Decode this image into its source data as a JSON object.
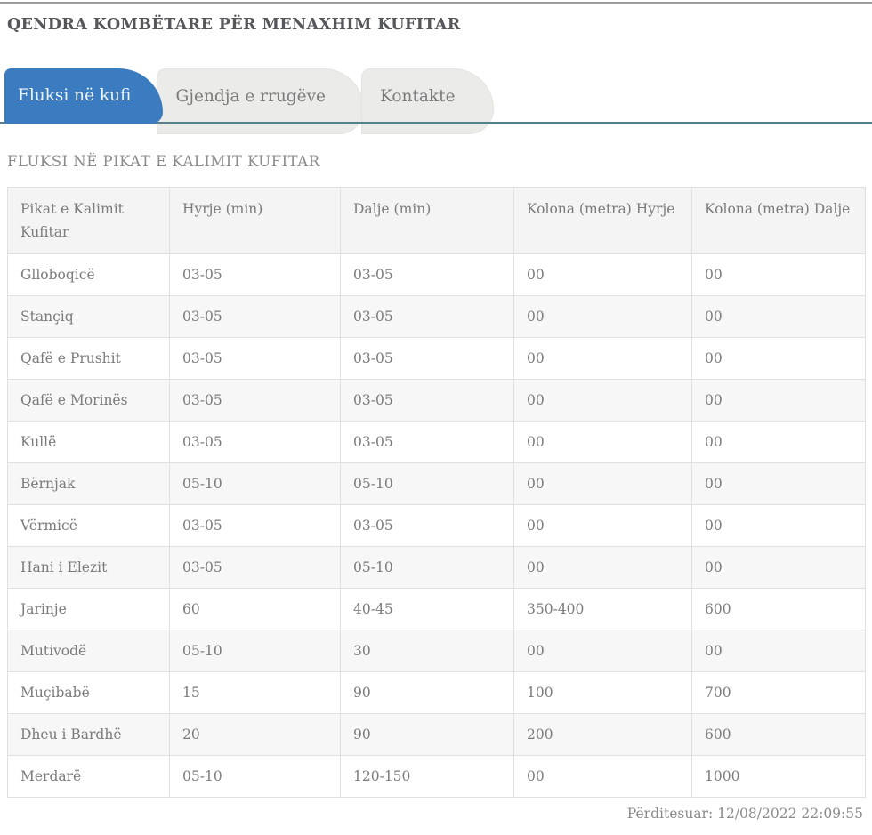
{
  "page": {
    "title": "QENDRA KOMBËTARE PËR MENAXHIM KUFITAR",
    "section_heading": "FLUKSI NË PIKAT E KALIMIT KUFITAR",
    "updated_text": "Përditesuar: 12/08/2022 22:09:55"
  },
  "tabs": [
    {
      "label": "Fluksi në kufi",
      "active": true
    },
    {
      "label": "Gjendja e rrugëve",
      "active": false
    },
    {
      "label": "Kontakte",
      "active": false
    }
  ],
  "colors": {
    "active_tab_blue": "#3b7cc1",
    "tab_underline_teal": "#557f8d",
    "inactive_tab_gray": "#ebebe9",
    "text_gray": "#7b7b7b",
    "zebra_row_gray": "#f7f7f7"
  },
  "table": {
    "columns": [
      "Pikat e Kalimit Kufitar",
      "Hyrje (min)",
      "Dalje (min)",
      "Kolona (metra) Hyrje",
      "Kolona (metra) Dalje"
    ],
    "rows": [
      [
        "Glloboqicë",
        "03-05",
        "03-05",
        "00",
        "00"
      ],
      [
        "Stançiq",
        "03-05",
        "03-05",
        "00",
        "00"
      ],
      [
        "Qafë e Prushit",
        "03-05",
        "03-05",
        "00",
        "00"
      ],
      [
        "Qafë e Morinës",
        "03-05",
        "03-05",
        "00",
        "00"
      ],
      [
        "Kullë",
        "03-05",
        "03-05",
        "00",
        "00"
      ],
      [
        "Bërnjak",
        "05-10",
        "05-10",
        "00",
        "00"
      ],
      [
        "Vërmicë",
        "03-05",
        "03-05",
        "00",
        "00"
      ],
      [
        "Hani i Elezit",
        "03-05",
        "05-10",
        "00",
        "00"
      ],
      [
        "Jarinje",
        "60",
        "40-45",
        "350-400",
        "600"
      ],
      [
        "Mutivodë",
        "05-10",
        "30",
        "00",
        "00"
      ],
      [
        "Muçibabë",
        "15",
        "90",
        "100",
        "700"
      ],
      [
        "Dheu i Bardhë",
        "20",
        "90",
        "200",
        "600"
      ],
      [
        "Merdarë",
        "05-10",
        "120-150",
        "00",
        "1000"
      ]
    ]
  }
}
